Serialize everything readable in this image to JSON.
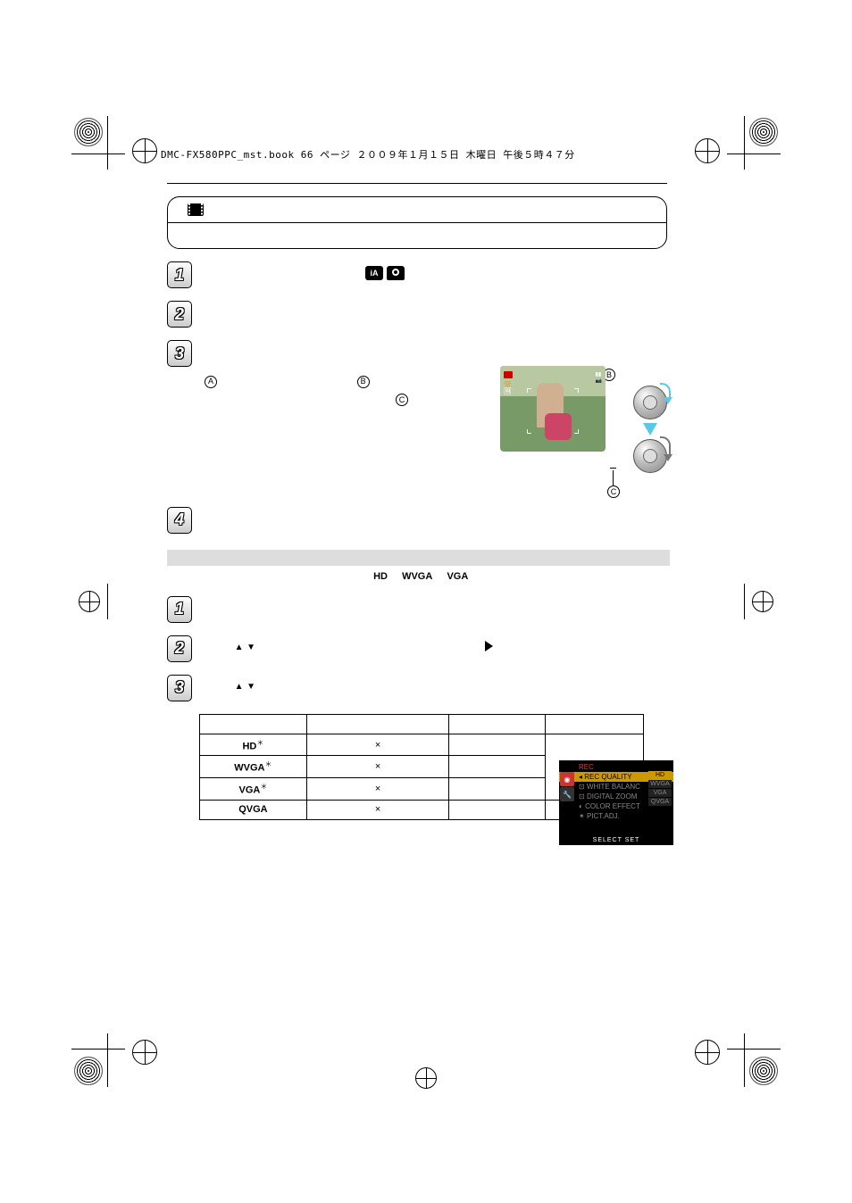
{
  "header_line": "DMC-FX580PPC_mst.book  66 ページ  ２００９年１月１５日  木曜日  午後５時４７分",
  "mode_box": {
    "top_prefix": "",
    "top_suffix": ""
  },
  "step1_text_before": "",
  "step1_text_after": "",
  "step2_text": "",
  "step3": {
    "line1_a": "",
    "line1_b": "",
    "line2_c": ""
  },
  "step4_text": "",
  "section": {
    "labels": {
      "hd": "HD",
      "wvga": "WVGA",
      "vga": "VGA"
    }
  },
  "sec_step1": "",
  "sec_step2_before": "",
  "sec_step2_after": "",
  "sec_step3_before": "",
  "sec_step3_after": "",
  "menu": {
    "title": "REC",
    "items": [
      "REC QUALITY",
      "WHITE BALANC",
      "DIGITAL ZOOM",
      "COLOR EFFECT",
      "PICT.ADJ."
    ],
    "options": [
      "HD",
      "WVGA",
      "VGA",
      "QVGA"
    ],
    "bottom": "SELECT   SET"
  },
  "table": {
    "headers": [
      "",
      "",
      "",
      ""
    ],
    "rows": [
      {
        "label": "HD",
        "star": true,
        "picsize": "×",
        "c3": "",
        "c4": ""
      },
      {
        "label": "WVGA",
        "star": true,
        "picsize": "×",
        "c3": "",
        "c4": ""
      },
      {
        "label": "VGA",
        "star": true,
        "picsize": "×",
        "c3": "",
        "c4": ""
      },
      {
        "label": "QVGA",
        "star": false,
        "picsize": "×",
        "c3": "",
        "c4": ""
      }
    ]
  }
}
